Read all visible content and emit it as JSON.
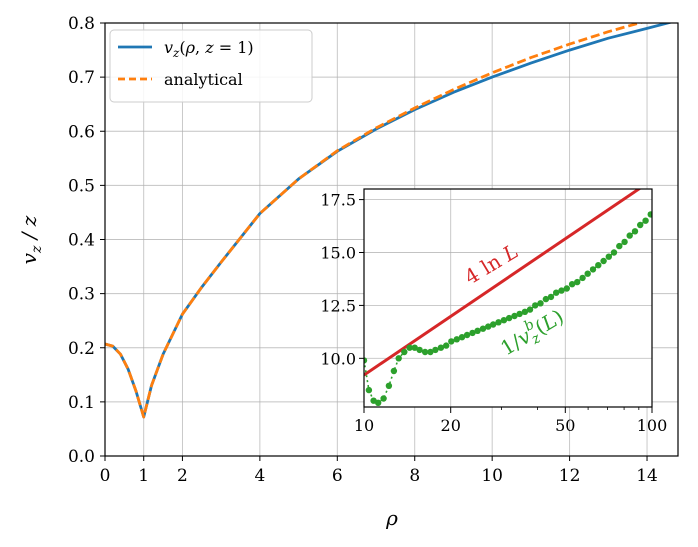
{
  "colors": {
    "blue": "#1f77b4",
    "orange": "#ff7f0e",
    "red": "#d62728",
    "green": "#2ca02c"
  },
  "chart_data": [
    {
      "type": "line",
      "xlabel": "ρ",
      "ylabel": "v_z / z",
      "xlim": [
        0,
        14.8
      ],
      "ylim": [
        0,
        0.8
      ],
      "xticks": [
        0,
        1,
        2,
        4,
        6,
        8,
        10,
        12,
        14
      ],
      "xtick_labels": [
        "0",
        "1",
        "2",
        "4",
        "6",
        "8",
        "10",
        "12",
        "14"
      ],
      "yticks": [
        0.0,
        0.1,
        0.2,
        0.3,
        0.4,
        0.5,
        0.6,
        0.7,
        0.8
      ],
      "ytick_labels": [
        "0.0",
        "0.1",
        "0.2",
        "0.3",
        "0.4",
        "0.5",
        "0.6",
        "0.7",
        "0.8"
      ],
      "grid": true,
      "legend": "top-left",
      "legend_entries": [
        "v_z(ρ, z = 1)",
        "analytical"
      ],
      "series": [
        {
          "name": "v_z(ρ, z = 1)",
          "style": "solid",
          "color": "#1f77b4",
          "x": [
            0,
            0.2,
            0.4,
            0.6,
            0.8,
            1.0,
            1.2,
            1.5,
            2,
            2.5,
            3,
            4,
            5,
            6,
            7,
            8,
            9,
            10,
            11,
            12,
            13,
            14,
            14.8
          ],
          "y": [
            0.207,
            0.203,
            0.188,
            0.16,
            0.12,
            0.072,
            0.13,
            0.188,
            0.262,
            0.312,
            0.358,
            0.448,
            0.512,
            0.563,
            0.604,
            0.64,
            0.672,
            0.7,
            0.726,
            0.75,
            0.772,
            0.79,
            0.805
          ]
        },
        {
          "name": "analytical",
          "style": "dashed",
          "color": "#ff7f0e",
          "x": [
            0,
            0.2,
            0.4,
            0.6,
            0.8,
            1.0,
            1.2,
            1.5,
            2,
            2.5,
            3,
            4,
            5,
            6,
            7,
            8,
            9,
            10,
            11,
            12,
            13,
            14,
            14.8
          ],
          "y": [
            0.207,
            0.203,
            0.188,
            0.16,
            0.12,
            0.072,
            0.13,
            0.188,
            0.262,
            0.312,
            0.358,
            0.448,
            0.512,
            0.564,
            0.606,
            0.643,
            0.677,
            0.708,
            0.736,
            0.761,
            0.784,
            0.804,
            0.82
          ]
        }
      ]
    },
    {
      "type": "line",
      "xscale": "log",
      "xlim": [
        10,
        100
      ],
      "ylim": [
        7.7,
        18.0
      ],
      "xticks": [
        10,
        20,
        50,
        100
      ],
      "xtick_labels": [
        "10",
        "20",
        "50",
        "100"
      ],
      "yticks": [
        10.0,
        12.5,
        15.0,
        17.5
      ],
      "ytick_labels": [
        "10.0",
        "12.5",
        "15.0",
        "17.5"
      ],
      "grid": true,
      "annotations": [
        "4 ln L",
        "1/v_z^b(L)"
      ],
      "series": [
        {
          "name": "4 ln L",
          "style": "solid",
          "color": "#d62728",
          "x": [
            10,
            100
          ],
          "y": [
            9.21,
            18.42
          ]
        },
        {
          "name": "1/v_z^b(L)",
          "style": "dotted-markers",
          "color": "#2ca02c",
          "x": [
            10,
            10.4,
            10.8,
            11.2,
            11.7,
            12.2,
            12.7,
            13.2,
            13.8,
            14.4,
            15.0,
            15.6,
            16.3,
            17.0,
            17.7,
            18.5,
            19.3,
            20.1,
            21.0,
            21.9,
            22.8,
            23.8,
            24.8,
            25.9,
            27.0,
            28.1,
            29.3,
            30.6,
            31.9,
            33.3,
            34.7,
            36.2,
            37.7,
            39.3,
            41.0,
            42.8,
            44.6,
            46.5,
            48.5,
            50.6,
            52.8,
            55.0,
            57.4,
            59.8,
            62.4,
            65.1,
            67.9,
            70.8,
            73.8,
            77.0,
            80.3,
            83.7,
            87.3,
            91.0,
            95.0,
            99.0
          ],
          "y": [
            9.9,
            8.5,
            8.0,
            7.9,
            8.1,
            8.7,
            9.4,
            10.0,
            10.3,
            10.5,
            10.5,
            10.4,
            10.3,
            10.3,
            10.4,
            10.5,
            10.6,
            10.8,
            10.9,
            11.0,
            11.1,
            11.2,
            11.3,
            11.4,
            11.5,
            11.6,
            11.7,
            11.8,
            11.9,
            12.0,
            12.1,
            12.2,
            12.3,
            12.5,
            12.6,
            12.8,
            12.9,
            13.1,
            13.2,
            13.3,
            13.5,
            13.6,
            13.8,
            14.0,
            14.2,
            14.4,
            14.6,
            14.8,
            15.0,
            15.3,
            15.5,
            15.8,
            16.0,
            16.3,
            16.5,
            16.8
          ]
        }
      ]
    }
  ]
}
